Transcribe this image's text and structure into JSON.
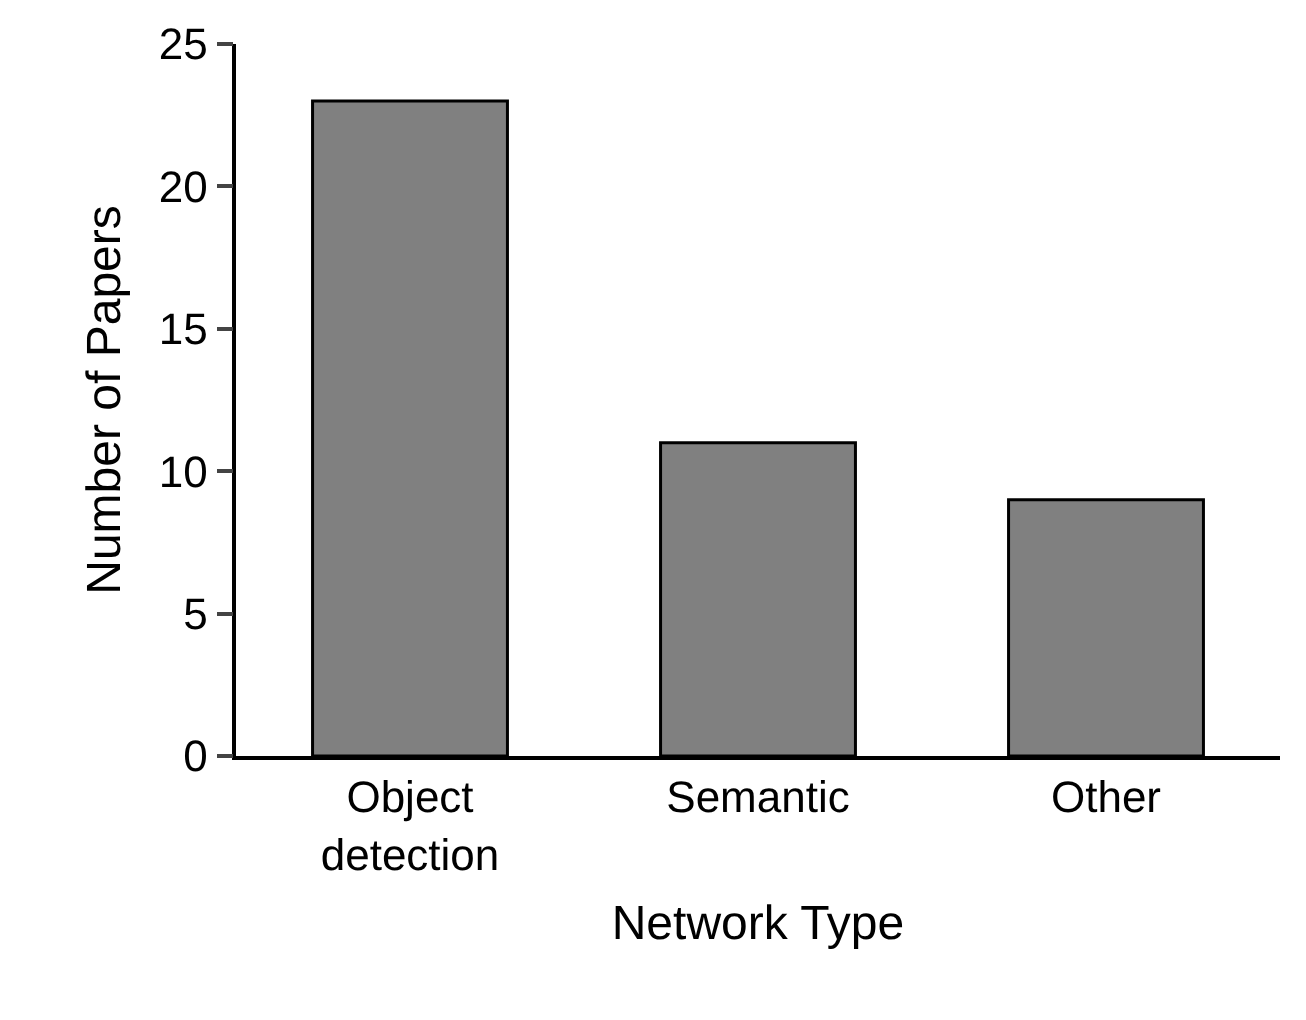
{
  "chart_data": {
    "type": "bar",
    "xlabel": "Network Type",
    "ylabel": "Number of Papers",
    "categories": [
      "Object detection",
      "Semantic",
      "Other"
    ],
    "values": [
      23,
      11,
      9
    ],
    "color": "#808080",
    "ylim": [
      0,
      25
    ],
    "yticks": [
      0,
      5,
      10,
      15,
      20,
      25
    ],
    "grid": false,
    "legend": false
  }
}
